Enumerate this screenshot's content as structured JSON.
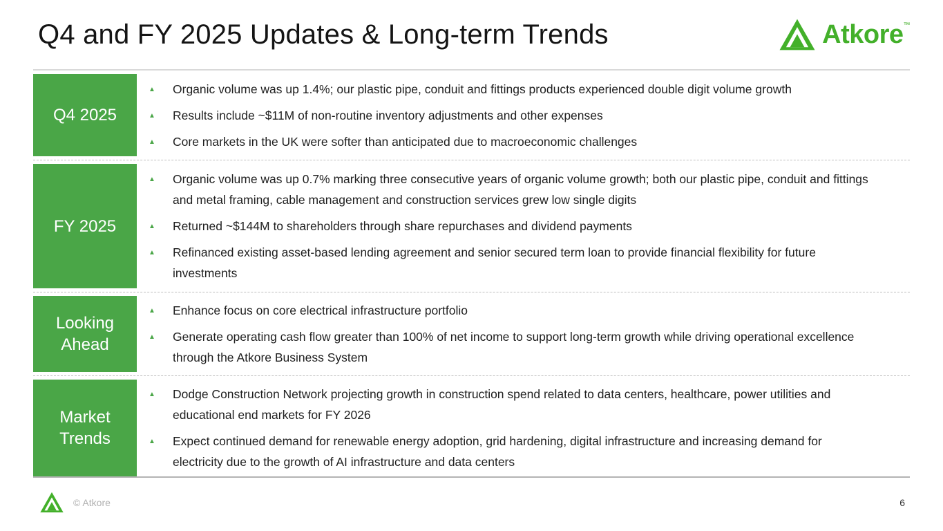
{
  "title": "Q4 and FY 2025 Updates & Long-term Trends",
  "logo": {
    "text": "Atkore",
    "trademark": "™"
  },
  "colors": {
    "box_green": "#4aa647",
    "logo_green": "#43b02a"
  },
  "sections": [
    {
      "label": "Q4 2025",
      "bullets": [
        "Organic volume was up 1.4%; our plastic pipe, conduit and fittings products experienced double digit volume growth",
        "Results include ~$11M of non-routine inventory adjustments and other expenses",
        "Core markets in the UK were softer than anticipated due to macroeconomic challenges"
      ]
    },
    {
      "label": "FY 2025",
      "bullets": [
        "Organic volume was up 0.7% marking three consecutive years of organic volume growth; both our plastic pipe, conduit and fittings and metal framing, cable management and construction services grew low single digits",
        "Returned ~$144M to shareholders through share repurchases and dividend payments",
        "Refinanced existing asset-based lending agreement and senior secured term loan to provide financial flexibility for future investments"
      ]
    },
    {
      "label": "Looking Ahead",
      "bullets": [
        "Enhance focus on core electrical infrastructure portfolio",
        "Generate operating cash flow greater than 100% of net income to support long-term growth while driving operational excellence through the Atkore Business System"
      ]
    },
    {
      "label": "Market Trends",
      "bullets": [
        "Dodge Construction Network projecting growth in construction spend related to data centers, healthcare, power utilities and educational end markets for FY 2026",
        "Expect continued demand for renewable energy adoption, grid hardening, digital infrastructure and increasing demand for electricity due to the growth of AI infrastructure and data centers"
      ]
    }
  ],
  "footer": {
    "copyright": "© Atkore",
    "page_number": "6"
  }
}
